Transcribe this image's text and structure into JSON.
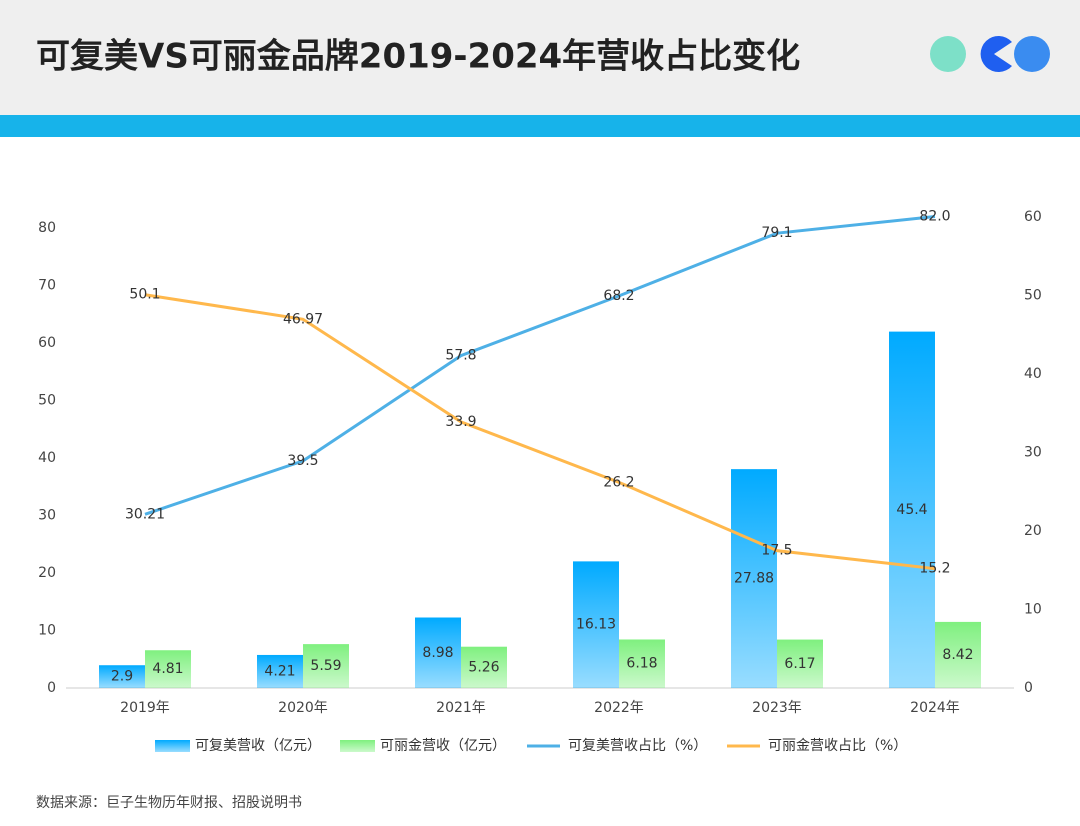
{
  "chart_data": {
    "type": "bar-line",
    "title": "可复美VS可丽金品牌2019-2024年营收占比变化",
    "source": "数据来源：巨子生物历年财报、招股说明书",
    "categories": [
      "2019年",
      "2020年",
      "2021年",
      "2022年",
      "2023年",
      "2024年"
    ],
    "series": [
      {
        "name": "可复美营收（亿元）",
        "type": "bar",
        "axis": "y2",
        "color": "#00aaff",
        "values": [
          2.9,
          4.21,
          8.98,
          16.13,
          27.88,
          45.4
        ]
      },
      {
        "name": "可丽金营收（亿元）",
        "type": "bar",
        "axis": "y2",
        "color": "#7ff07f",
        "values": [
          4.81,
          5.59,
          5.26,
          6.18,
          6.17,
          8.42
        ]
      },
      {
        "name": "可复美营收占比（%）",
        "type": "line",
        "axis": "y",
        "color": "#4eb0e6",
        "values": [
          30.21,
          39.5,
          57.8,
          68.2,
          79.1,
          82.0
        ],
        "value_labels": [
          "30.21",
          "39.5",
          "57.8",
          "68.2",
          "79.1",
          "82.0"
        ]
      },
      {
        "name": "可丽金营收占比（%）",
        "type": "line",
        "axis": "y2",
        "color": "#ffb84c",
        "values": [
          50.1,
          46.97,
          33.9,
          26.2,
          17.5,
          15.2
        ]
      }
    ],
    "ylim": [
      0,
      80
    ],
    "yticks": [
      0,
      10,
      20,
      30,
      40,
      50,
      60,
      70,
      80
    ],
    "y2lim": [
      0,
      60
    ],
    "y2ticks": [
      0,
      10,
      20,
      30,
      40,
      50,
      60
    ],
    "grid": false
  }
}
